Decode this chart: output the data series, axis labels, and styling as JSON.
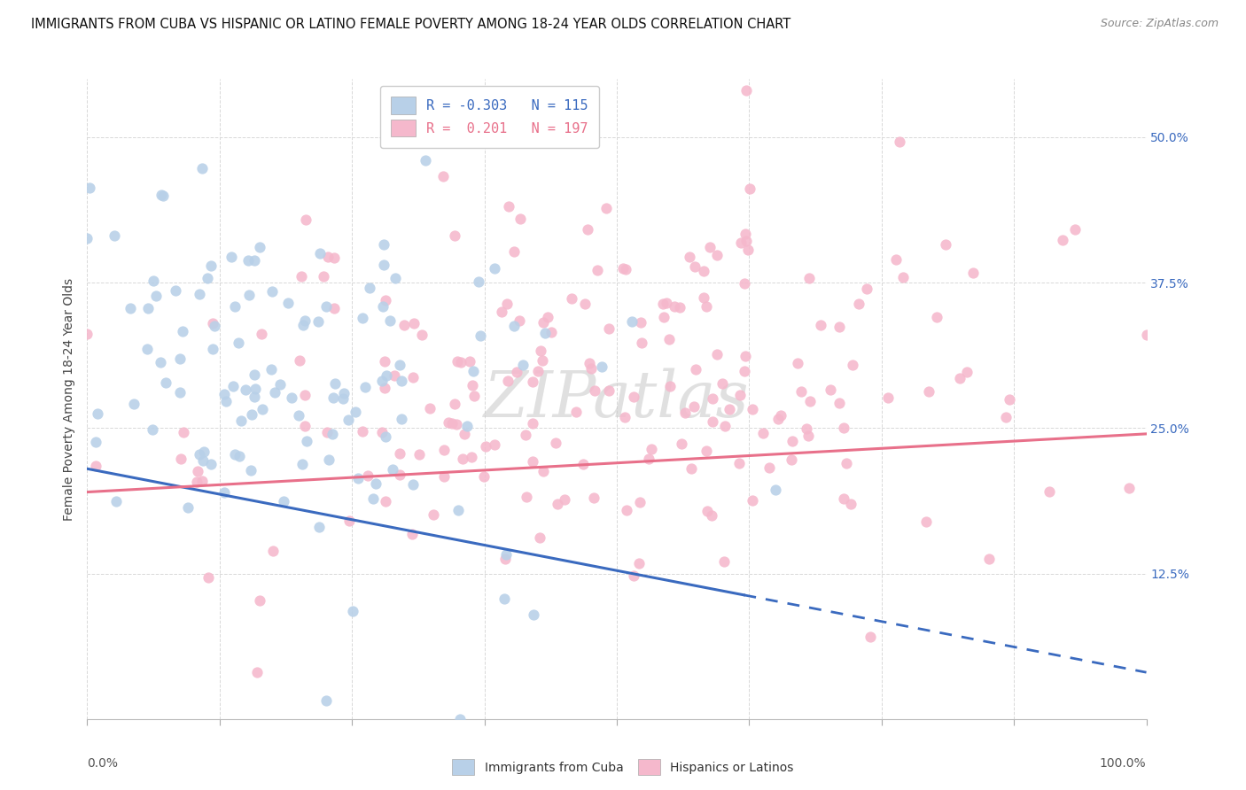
{
  "title": "IMMIGRANTS FROM CUBA VS HISPANIC OR LATINO FEMALE POVERTY AMONG 18-24 YEAR OLDS CORRELATION CHART",
  "source": "Source: ZipAtlas.com",
  "ylabel": "Female Poverty Among 18-24 Year Olds",
  "ytick_vals": [
    0.125,
    0.25,
    0.375,
    0.5
  ],
  "ytick_labels": [
    "12.5%",
    "25.0%",
    "37.5%",
    "50.0%"
  ],
  "xlim": [
    0,
    1.0
  ],
  "ylim": [
    0,
    0.55
  ],
  "cuba_R": -0.303,
  "cuba_N": 115,
  "hispanic_R": 0.201,
  "hispanic_N": 197,
  "cuba_scatter_color": "#b8d0e8",
  "hispanic_scatter_color": "#f5b8cc",
  "cuba_line_color": "#3a6abf",
  "hispanic_line_color": "#e8708a",
  "grid_color": "#d8d8d8",
  "background_color": "#ffffff",
  "title_fontsize": 10.5,
  "source_fontsize": 9,
  "ylabel_fontsize": 10,
  "tick_fontsize": 10,
  "legend_fontsize": 11,
  "watermark": "ZIPatlas",
  "legend1_label_blue": "R = -0.303   N = 115",
  "legend1_label_pink": "R =  0.201   N = 197",
  "legend2_label_blue": "Immigrants from Cuba",
  "legend2_label_pink": "Hispanics or Latinos",
  "cuba_line_x0": 0.0,
  "cuba_line_y0": 0.215,
  "cuba_line_x1": 1.0,
  "cuba_line_y1": 0.04,
  "cuba_solid_xend": 0.62,
  "hisp_line_x0": 0.0,
  "hisp_line_y0": 0.195,
  "hisp_line_x1": 1.0,
  "hisp_line_y1": 0.245
}
